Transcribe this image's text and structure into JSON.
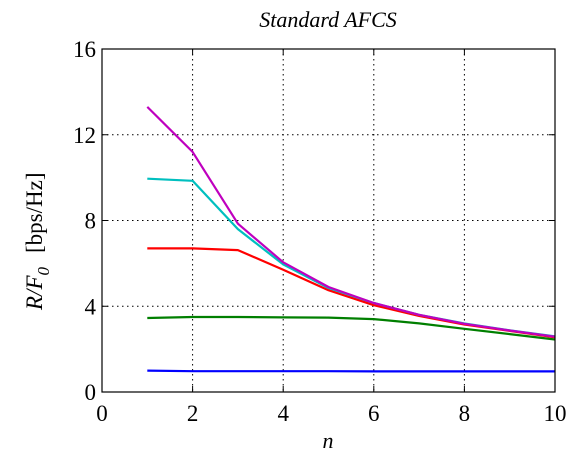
{
  "chart_data": {
    "type": "line",
    "title": "Standard AFCS",
    "xlabel": "n",
    "ylabel_main": "R/F",
    "ylabel_sub": "0",
    "ylabel_unit": "[bps/Hz]",
    "xlim": [
      0,
      10
    ],
    "ylim": [
      0,
      16
    ],
    "xticks": [
      "0",
      "2",
      "4",
      "6",
      "8",
      "10"
    ],
    "yticks": [
      "0",
      "4",
      "8",
      "12",
      "16"
    ],
    "grid": true,
    "legend": "none",
    "x": [
      1,
      2,
      3,
      4,
      5,
      6,
      7,
      8,
      9,
      10
    ],
    "series": [
      {
        "color": "#0000ff",
        "values": [
          1.0,
          0.97,
          0.97,
          0.97,
          0.97,
          0.96,
          0.96,
          0.96,
          0.96,
          0.96
        ]
      },
      {
        "color": "#007f00",
        "values": [
          3.45,
          3.5,
          3.5,
          3.48,
          3.47,
          3.4,
          3.2,
          2.95,
          2.7,
          2.45
        ]
      },
      {
        "color": "#ff0000",
        "values": [
          6.7,
          6.7,
          6.62,
          5.7,
          4.75,
          4.05,
          3.55,
          3.15,
          2.85,
          2.55
        ]
      },
      {
        "color": "#00bfbf",
        "values": [
          9.95,
          9.85,
          7.6,
          5.95,
          4.85,
          4.15,
          3.6,
          3.2,
          2.88,
          2.6
        ]
      },
      {
        "color": "#bf00bf",
        "values": [
          13.3,
          11.2,
          7.85,
          6.05,
          4.9,
          4.15,
          3.6,
          3.18,
          2.87,
          2.58
        ]
      }
    ]
  }
}
